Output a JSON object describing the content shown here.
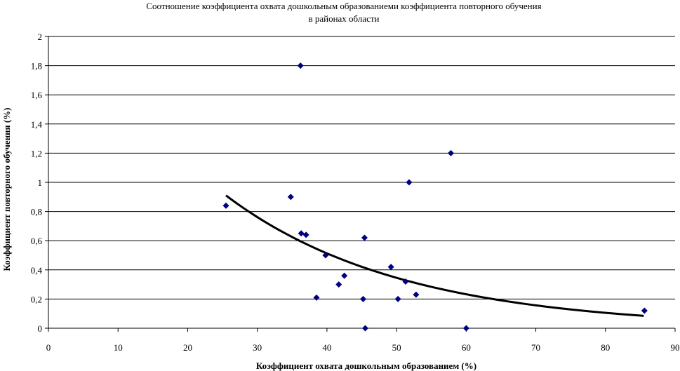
{
  "chart_data": {
    "type": "scatter",
    "title_line1": "Соотношение  коэффициента охвата дошкольным образованиеми коэффициента повторного обучения",
    "title_line2": "в районах области",
    "xlabel": "Коэффициент охвата дошкольным образованием (%)",
    "ylabel": "Коэффициент повторного обучения (%)",
    "xlim": [
      0,
      90
    ],
    "ylim": [
      0,
      2
    ],
    "x_ticks": [
      "0",
      "10",
      "20",
      "30",
      "40",
      "50",
      "60",
      "70",
      "80",
      "90"
    ],
    "y_ticks": [
      "0",
      "0,2",
      "0,4",
      "0,6",
      "0,8",
      "1",
      "1,2",
      "1,4",
      "1,6",
      "1,8",
      "2"
    ],
    "grid": "horizontal",
    "marker_color": "#000080",
    "trend_color": "#000000",
    "points": [
      {
        "x": 25.5,
        "y": 0.84
      },
      {
        "x": 34.8,
        "y": 0.9
      },
      {
        "x": 36.2,
        "y": 1.8
      },
      {
        "x": 36.3,
        "y": 0.65
      },
      {
        "x": 37.0,
        "y": 0.64
      },
      {
        "x": 38.5,
        "y": 0.21
      },
      {
        "x": 39.8,
        "y": 0.5
      },
      {
        "x": 41.7,
        "y": 0.3
      },
      {
        "x": 42.5,
        "y": 0.36
      },
      {
        "x": 45.2,
        "y": 0.2
      },
      {
        "x": 45.4,
        "y": 0.62
      },
      {
        "x": 45.5,
        "y": 0.0
      },
      {
        "x": 49.2,
        "y": 0.42
      },
      {
        "x": 50.2,
        "y": 0.2
      },
      {
        "x": 51.3,
        "y": 0.32
      },
      {
        "x": 51.8,
        "y": 1.0
      },
      {
        "x": 52.8,
        "y": 0.23
      },
      {
        "x": 57.8,
        "y": 1.2
      },
      {
        "x": 60.0,
        "y": 0.0
      },
      {
        "x": 85.6,
        "y": 0.12
      }
    ],
    "trendline": {
      "type": "exponential",
      "x_range": [
        25.5,
        85.5
      ],
      "y_start": 0.91,
      "y_end": 0.085
    }
  }
}
